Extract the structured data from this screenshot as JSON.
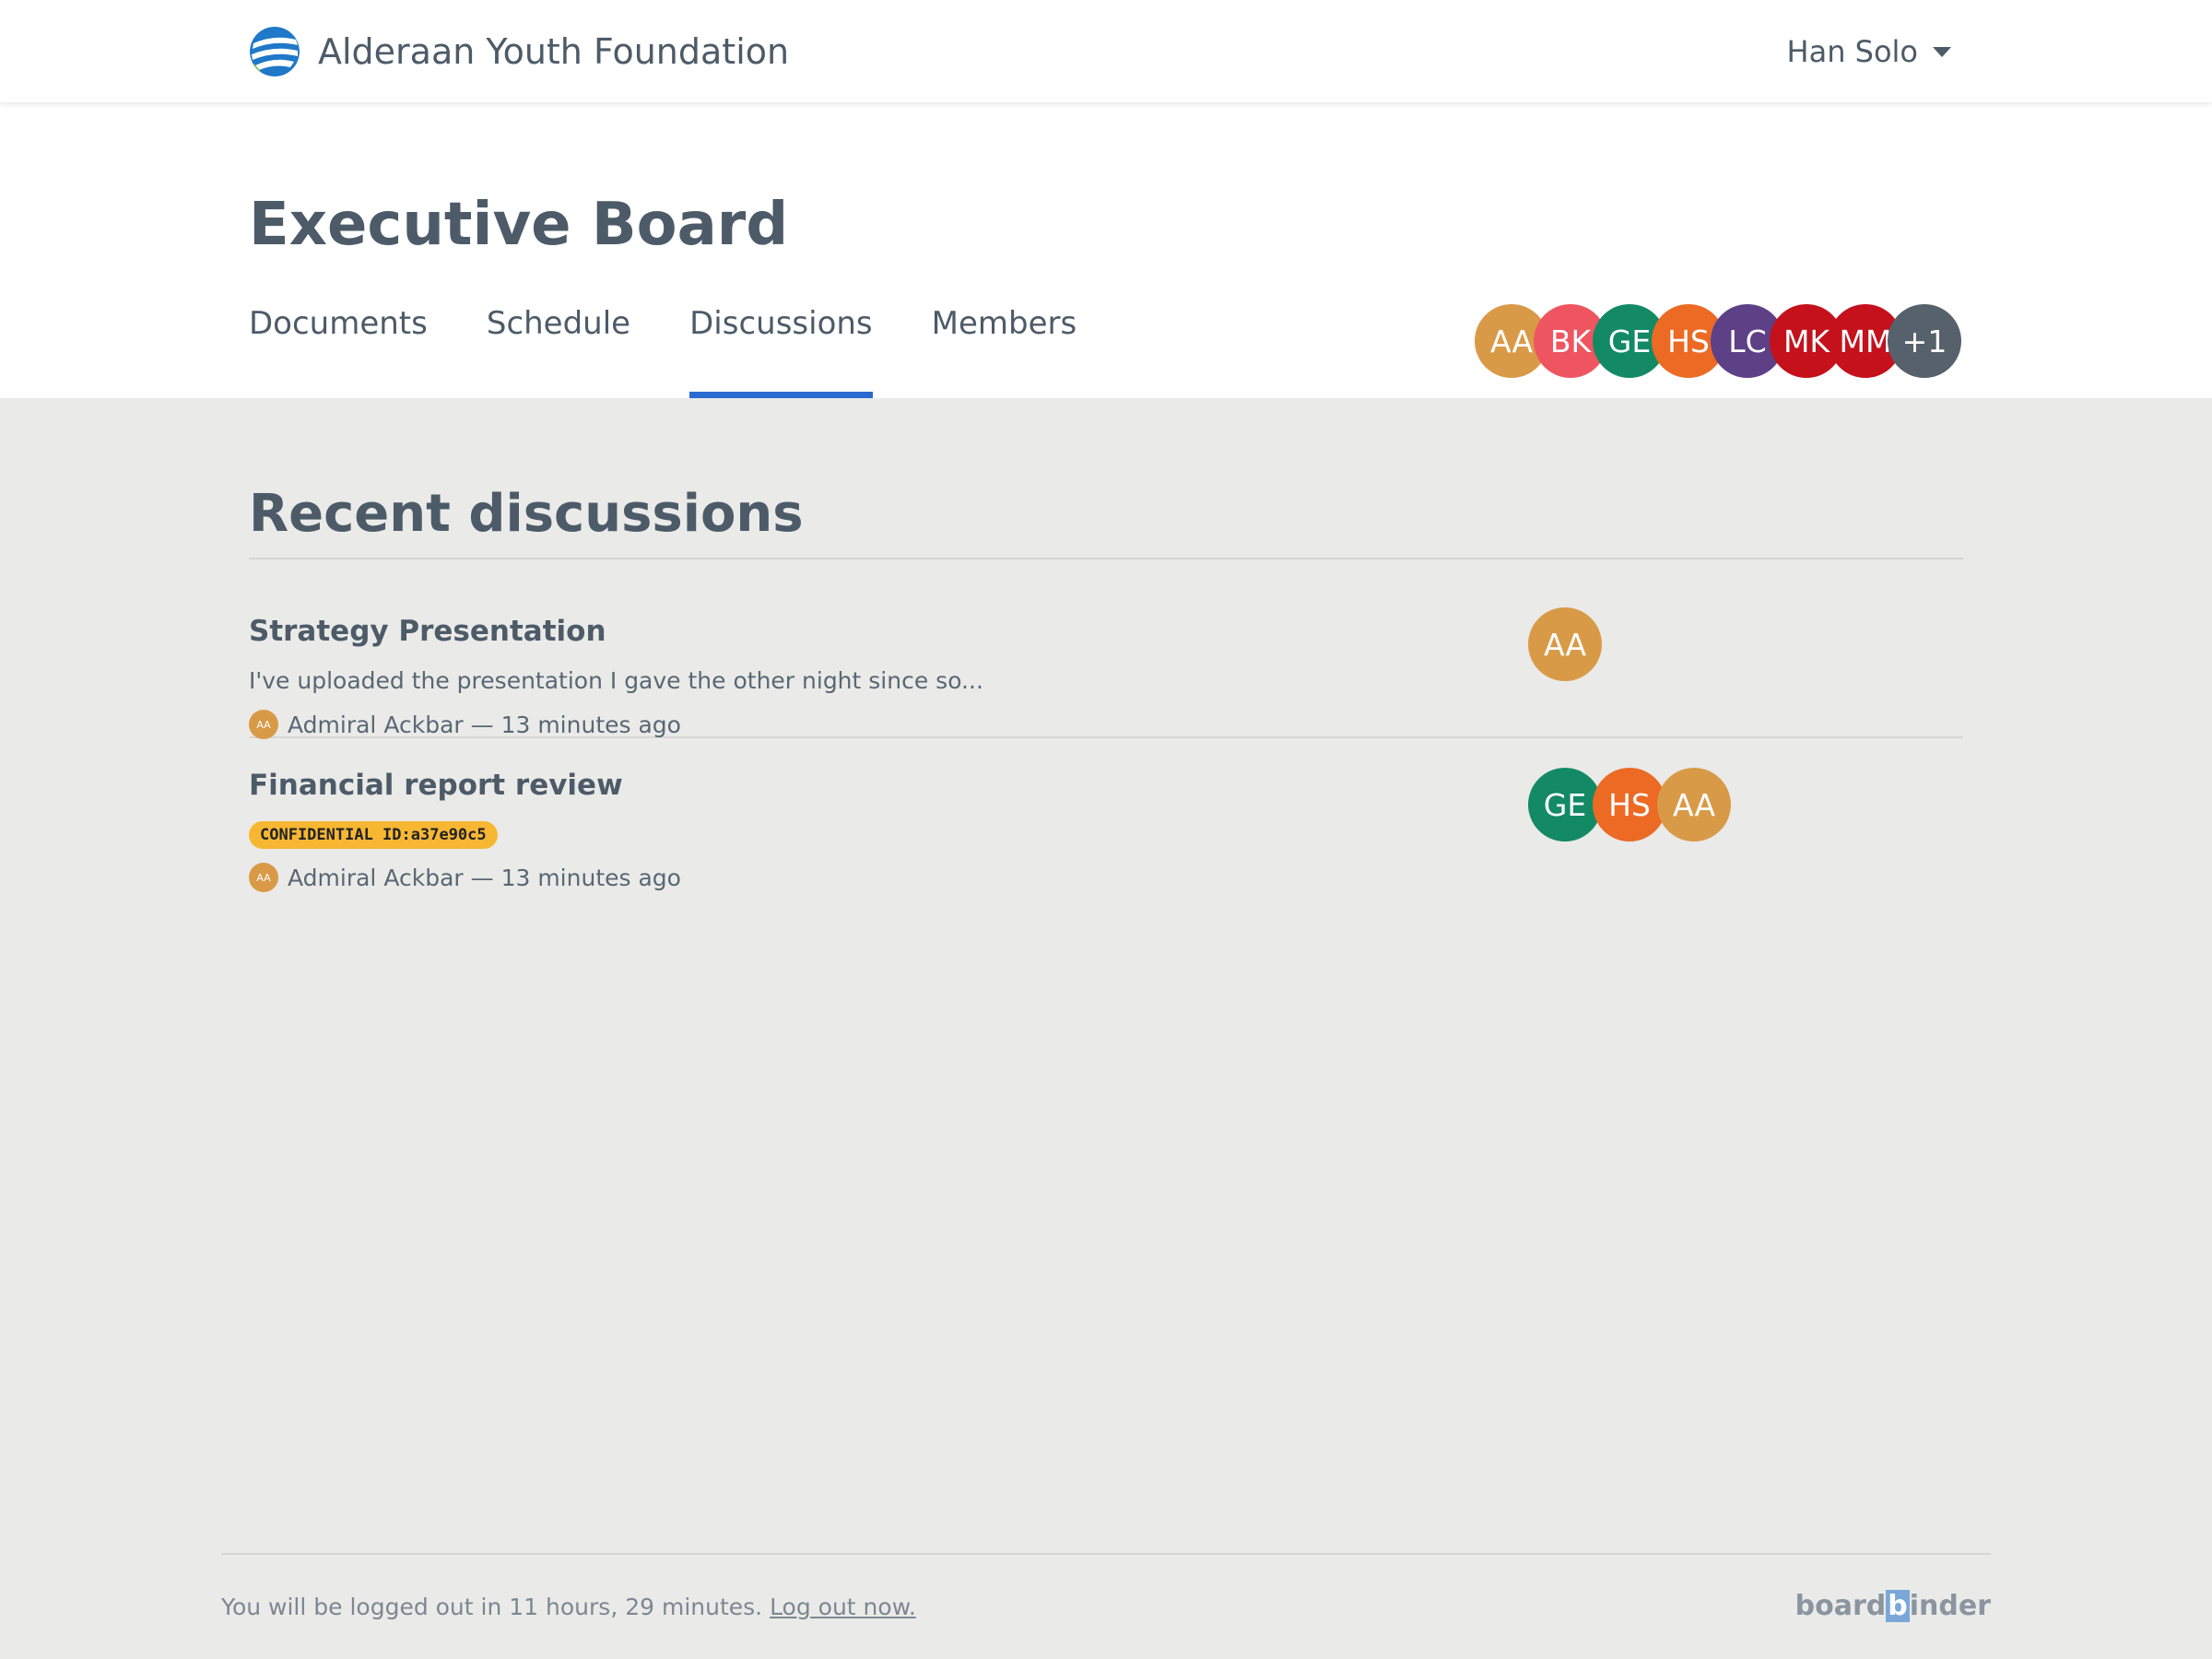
{
  "org": {
    "name": "Alderaan Youth Foundation",
    "logo_icon": "globe-logo-icon"
  },
  "user": {
    "name": "Han Solo",
    "caret_icon": "caret-down-icon"
  },
  "board": {
    "title": "Executive Board",
    "tabs": [
      {
        "label": "Documents",
        "active": false
      },
      {
        "label": "Schedule",
        "active": false
      },
      {
        "label": "Discussions",
        "active": true
      },
      {
        "label": "Members",
        "active": false
      }
    ],
    "accent_color": "#2a6bd1",
    "members": [
      {
        "initials": "AA",
        "color": "#d99a48"
      },
      {
        "initials": "BK",
        "color": "#ef5560"
      },
      {
        "initials": "GE",
        "color": "#138a64"
      },
      {
        "initials": "HS",
        "color": "#ec6a24"
      },
      {
        "initials": "LC",
        "color": "#5e4087"
      },
      {
        "initials": "MK",
        "color": "#c4111c"
      },
      {
        "initials": "MM",
        "color": "#c4111c"
      },
      {
        "initials": "+1",
        "color": "#56616c"
      }
    ]
  },
  "discussions": {
    "section_title": "Recent discussions",
    "items": [
      {
        "title": "Strategy Presentation",
        "excerpt": "I've uploaded the presentation I gave the other night since so...",
        "author_initials": "AA",
        "meta": "Admiral Ackbar — 13 minutes ago",
        "participants": [
          {
            "initials": "AA",
            "color": "#d99a48"
          }
        ]
      },
      {
        "title": "Financial report review",
        "badge": "CONFIDENTIAL ID:a37e90c5",
        "badge_color": "#f7b733",
        "author_initials": "AA",
        "meta": "Admiral Ackbar — 13 minutes ago",
        "participants": [
          {
            "initials": "GE",
            "color": "#138a64"
          },
          {
            "initials": "HS",
            "color": "#ec6a24"
          },
          {
            "initials": "AA",
            "color": "#d99a48"
          }
        ]
      }
    ]
  },
  "footer": {
    "logout_notice": "You will be logged out in 11 hours, 29 minutes.",
    "logout_link": "Log out now.",
    "brand_prefix": "board",
    "brand_highlight": "b",
    "brand_suffix": "inder"
  }
}
